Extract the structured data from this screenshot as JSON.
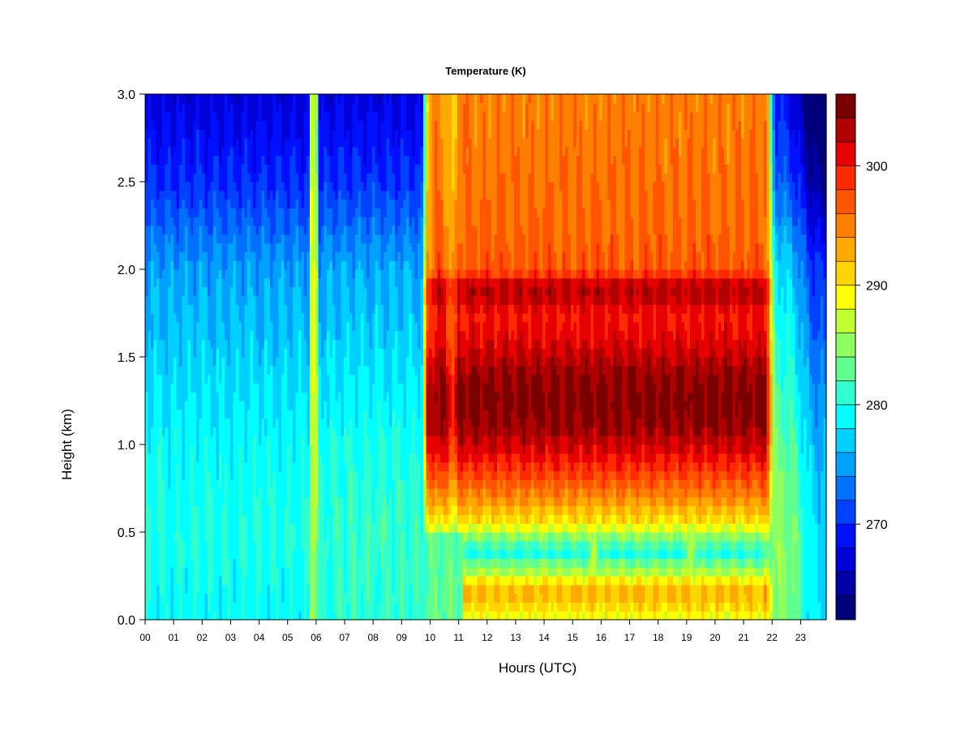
{
  "chart_data": {
    "type": "heatmap",
    "title": "Temperature (K)",
    "xlabel": "Hours (UTC)",
    "ylabel": "Height (km)",
    "xlim": [
      0,
      23.9
    ],
    "ylim": [
      0,
      3.0
    ],
    "x_ticks": [
      "00",
      "01",
      "02",
      "03",
      "04",
      "05",
      "06",
      "07",
      "08",
      "09",
      "10",
      "11",
      "12",
      "13",
      "14",
      "15",
      "16",
      "17",
      "18",
      "19",
      "20",
      "21",
      "22",
      "23"
    ],
    "y_ticks": [
      "0.0",
      "0.5",
      "1.0",
      "1.5",
      "2.0",
      "2.5",
      "3.0"
    ],
    "colorbar": {
      "range": [
        262,
        306
      ],
      "levels": 22,
      "ticks": [
        270,
        280,
        290,
        300
      ],
      "colors": [
        "#00007a",
        "#0000a8",
        "#0000d8",
        "#0010ff",
        "#0040ff",
        "#0070ff",
        "#00a0ff",
        "#00d0ff",
        "#00ffff",
        "#30ffd0",
        "#60ff90",
        "#90ff60",
        "#c0ff30",
        "#ffff00",
        "#ffd500",
        "#ffaa00",
        "#ff8000",
        "#ff5500",
        "#ff2a00",
        "#e60000",
        "#b00000",
        "#7a0000"
      ]
    },
    "temperature_model": {
      "night_profile_height_km": [
        0.0,
        0.5,
        1.0,
        1.5,
        2.0,
        2.5,
        3.0
      ],
      "night_profile_K": [
        279,
        280,
        279,
        277,
        275,
        270,
        267
      ],
      "day_profile_height_km": [
        0.0,
        0.05,
        0.12,
        0.2,
        0.25,
        0.3,
        0.38,
        0.45,
        0.55,
        0.75,
        0.95,
        1.1,
        1.25,
        1.4,
        1.6,
        1.75,
        1.85,
        1.92,
        2.0,
        2.3,
        3.0
      ],
      "day_profile_K": [
        288,
        290,
        292,
        292,
        287,
        285,
        280,
        283,
        290,
        296,
        301,
        304,
        305,
        304,
        301,
        300,
        303,
        302,
        297,
        296,
        295
      ],
      "day_start_hour": 9.75,
      "day_end_hour": 21.8,
      "warm_streak_hours": [
        5.9,
        15.75,
        19.2
      ],
      "evening_cold_end_hour": 23.9
    }
  }
}
